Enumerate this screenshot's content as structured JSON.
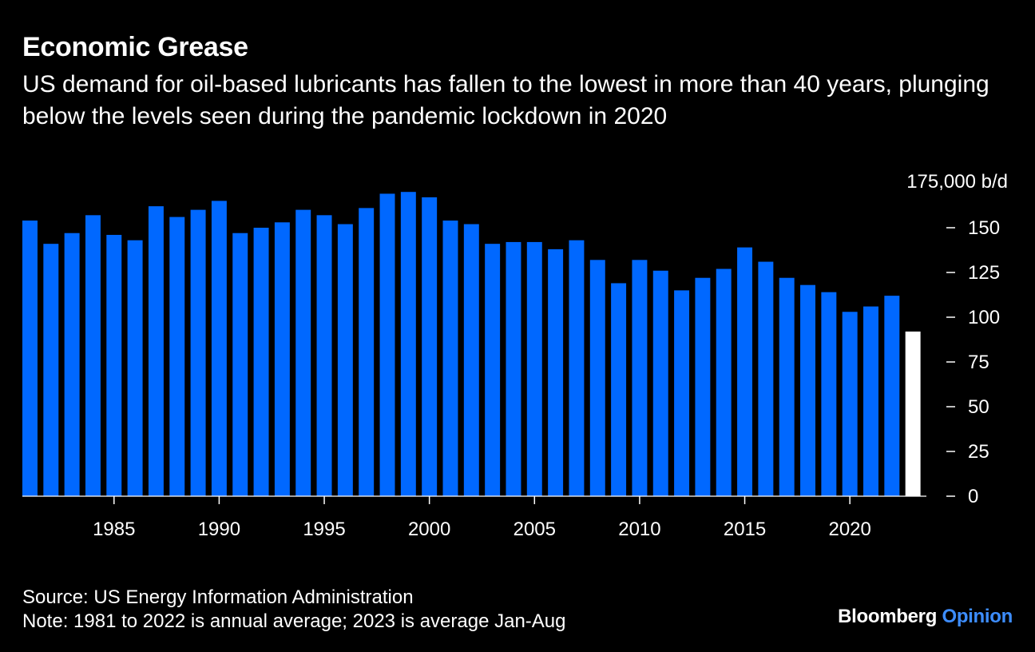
{
  "title": "Economic Grease",
  "subtitle": "US demand for oil-based lubricants has fallen to the lowest in more than 40 years, plunging below the levels seen during the pandemic lockdown in 2020",
  "source": "Source: US Energy Information Administration",
  "note": "Note: 1981 to 2022 is annual average; 2023 is average Jan-Aug",
  "brand": {
    "name": "Bloomberg",
    "suffix": "Opinion"
  },
  "colors": {
    "bar": "#0068ff",
    "highlight": "#ffffff",
    "brand_accent": "#3d8dff",
    "background": "#000000"
  },
  "chart_data": {
    "type": "bar",
    "title": "Economic Grease",
    "ylabel": "175,000 b/d",
    "ylim": [
      0,
      175
    ],
    "yticks": [
      0,
      25,
      50,
      75,
      100,
      125,
      150
    ],
    "ytick_labels": [
      "0",
      "25",
      "50",
      "75",
      "100",
      "125",
      "150"
    ],
    "xticks": [
      1985,
      1990,
      1995,
      2000,
      2005,
      2010,
      2015,
      2020
    ],
    "x": [
      1981,
      1982,
      1983,
      1984,
      1985,
      1986,
      1987,
      1988,
      1989,
      1990,
      1991,
      1992,
      1993,
      1994,
      1995,
      1996,
      1997,
      1998,
      1999,
      2000,
      2001,
      2002,
      2003,
      2004,
      2005,
      2006,
      2007,
      2008,
      2009,
      2010,
      2011,
      2012,
      2013,
      2014,
      2015,
      2016,
      2017,
      2018,
      2019,
      2020,
      2021,
      2022,
      2023
    ],
    "values": [
      154,
      141,
      147,
      157,
      146,
      143,
      162,
      156,
      160,
      165,
      147,
      150,
      153,
      160,
      157,
      152,
      161,
      169,
      170,
      167,
      154,
      152,
      141,
      142,
      142,
      138,
      143,
      132,
      119,
      132,
      126,
      115,
      122,
      127,
      139,
      131,
      122,
      118,
      114,
      103,
      106,
      112,
      92
    ],
    "highlight": [
      2023
    ]
  }
}
